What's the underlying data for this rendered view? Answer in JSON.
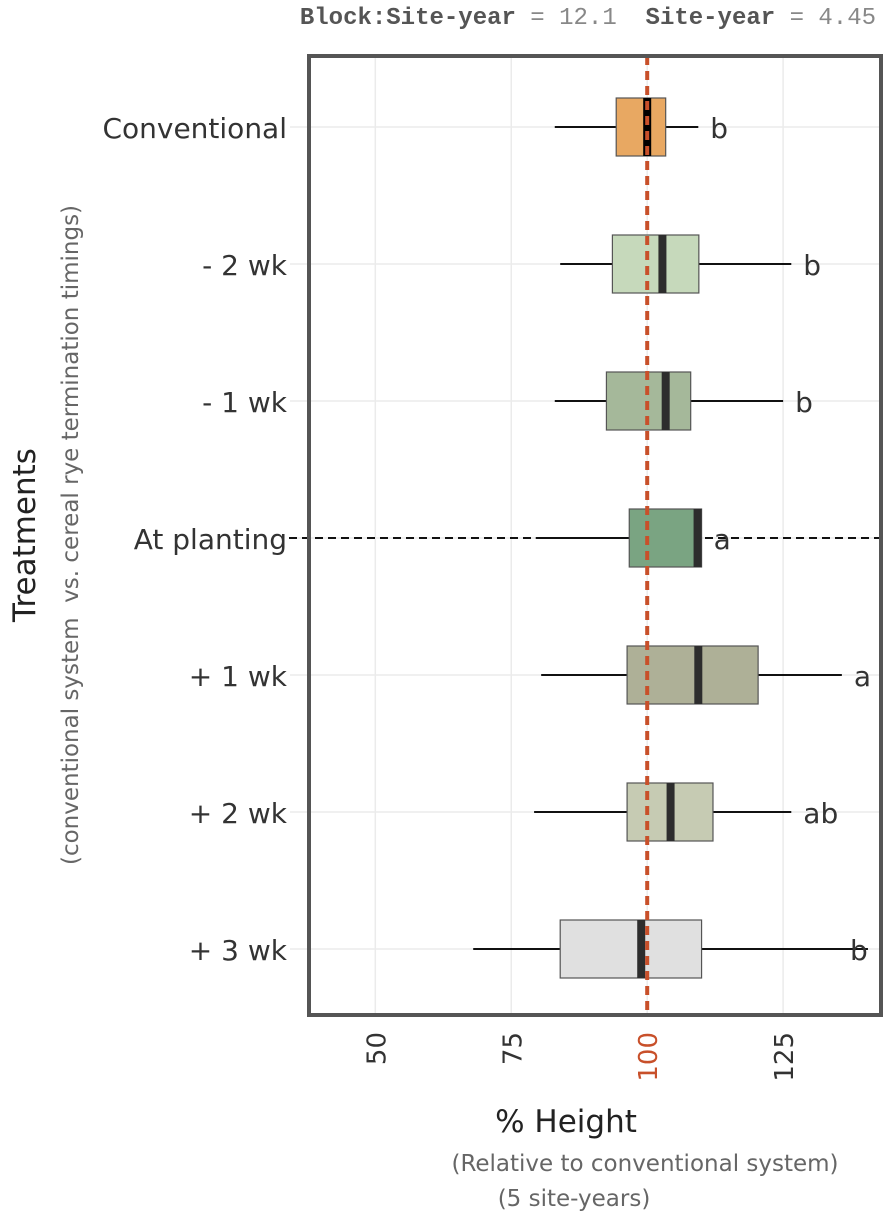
{
  "header": {
    "parts": [
      {
        "label": "Block:Site-year",
        "sep": " = ",
        "value": "12.1"
      },
      {
        "label": "Site-year",
        "sep": " = ",
        "value": "4.45"
      }
    ]
  },
  "chart_data": {
    "type": "boxplot",
    "orientation": "horizontal",
    "title": "",
    "xlabel": "% Height",
    "xlabel_sub": [
      "(Relative to conventional system)",
      "(5 site-years)"
    ],
    "ylabel": "Treatments",
    "ylabel_sub": "(conventional system  vs. cereal rye termination timings)",
    "xlim": [
      37.8,
      143
    ],
    "xticks": [
      50,
      75,
      100,
      125
    ],
    "highlight_tick": 100,
    "reference_line": {
      "x": 100,
      "style": "dashed",
      "color": "#c8502a"
    },
    "grid": true,
    "highlight_row": "At planting",
    "categories": [
      "Conventional",
      "- 2 wk",
      "- 1 wk",
      "At planting",
      "+ 1 wk",
      "+ 2 wk",
      "+ 3 wk"
    ],
    "series": [
      {
        "name": "Conventional",
        "whisker_low": 83,
        "q1": 94.3,
        "median": 100,
        "q3": 103.4,
        "whisker_high": 109.4,
        "letter": "b",
        "color": "#e8a862"
      },
      {
        "name": "- 2 wk",
        "whisker_low": 84,
        "q1": 93.6,
        "median": 102.8,
        "q3": 109.5,
        "whisker_high": 126.5,
        "letter": "b",
        "color": "#c6d9bb"
      },
      {
        "name": "- 1 wk",
        "whisker_low": 83,
        "q1": 92.5,
        "median": 103.4,
        "q3": 108,
        "whisker_high": 125,
        "letter": "b",
        "color": "#a5b89a"
      },
      {
        "name": "At planting",
        "whisker_low": 79.5,
        "q1": 96.7,
        "median": 109.3,
        "q3": 110,
        "whisker_high": 110,
        "letter": "a",
        "color": "#7aa482"
      },
      {
        "name": "+ 1 wk",
        "whisker_low": 80.5,
        "q1": 96.3,
        "median": 109.4,
        "q3": 120.4,
        "whisker_high": 135.8,
        "letter": "a",
        "color": "#aeb097"
      },
      {
        "name": "+ 2 wk",
        "whisker_low": 79.2,
        "q1": 96.3,
        "median": 104.3,
        "q3": 112.1,
        "whisker_high": 126.5,
        "letter": "ab",
        "color": "#c6cbb3"
      },
      {
        "name": "+ 3 wk",
        "whisker_low": 68,
        "q1": 84,
        "median": 98.9,
        "q3": 110,
        "whisker_high": 140.6,
        "letter": "b",
        "color": "#e0e0e0"
      }
    ]
  }
}
